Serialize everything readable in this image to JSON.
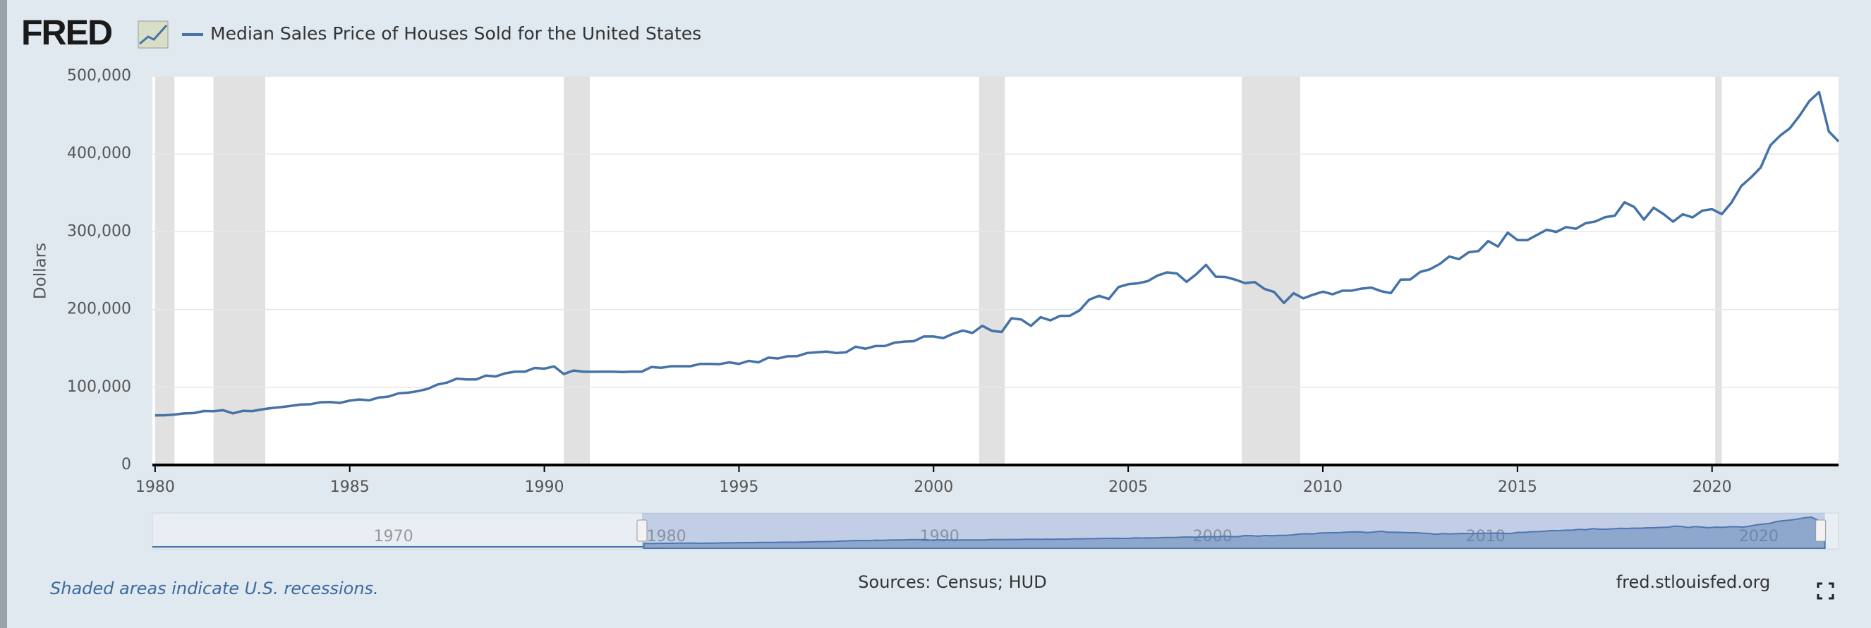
{
  "chart_data": {
    "type": "line",
    "logo": "FRED",
    "title": "Median Sales Price of Houses Sold for the United States",
    "y_label": "Dollars",
    "note": "Shaded areas indicate U.S. recessions.",
    "source": "Sources: Census; HUD",
    "site": "fred.stlouisfed.org",
    "xlim": [
      1979.93,
      2023.25
    ],
    "xticks": [
      1980,
      1985,
      1990,
      1995,
      2000,
      2005,
      2010,
      2015,
      2020
    ],
    "ylim": [
      0,
      500000
    ],
    "yticks": [
      0,
      {
        "value": 100000,
        "label": "100,000"
      },
      {
        "value": 200000,
        "label": "200,000"
      },
      {
        "value": 300000,
        "label": "300,000"
      },
      {
        "value": 400000,
        "label": "400,000"
      },
      {
        "value": 500000,
        "label": "500,000"
      }
    ],
    "grid": true,
    "recessions": [
      [
        1980.0,
        1980.5
      ],
      [
        1981.5,
        1982.83
      ],
      [
        1990.5,
        1991.17
      ],
      [
        2001.17,
        2001.83
      ],
      [
        2007.92,
        2009.42
      ],
      [
        2020.08,
        2020.25
      ]
    ],
    "recession_color": "#e1e1e1",
    "navigator_xlim": [
      1962,
      2023.75
    ],
    "navigator_xticks": [
      1970,
      1980,
      1990,
      2000,
      2010,
      2020
    ],
    "x": [
      1980,
      1980.25,
      1980.5,
      1980.75,
      1981,
      1981.25,
      1981.5,
      1981.75,
      1982,
      1982.25,
      1982.5,
      1982.75,
      1983,
      1983.25,
      1983.5,
      1983.75,
      1984,
      1984.25,
      1984.5,
      1984.75,
      1985,
      1985.25,
      1985.5,
      1985.75,
      1986,
      1986.25,
      1986.5,
      1986.75,
      1987,
      1987.25,
      1987.5,
      1987.75,
      1988,
      1988.25,
      1988.5,
      1988.75,
      1989,
      1989.25,
      1989.5,
      1989.75,
      1990,
      1990.25,
      1990.5,
      1990.75,
      1991,
      1991.25,
      1991.5,
      1991.75,
      1992,
      1992.25,
      1992.5,
      1992.75,
      1993,
      1993.25,
      1993.5,
      1993.75,
      1994,
      1994.25,
      1994.5,
      1994.75,
      1995,
      1995.25,
      1995.5,
      1995.75,
      1996,
      1996.25,
      1996.5,
      1996.75,
      1997,
      1997.25,
      1997.5,
      1997.75,
      1998,
      1998.25,
      1998.5,
      1998.75,
      1999,
      1999.25,
      1999.5,
      1999.75,
      2000,
      2000.25,
      2000.5,
      2000.75,
      2001,
      2001.25,
      2001.5,
      2001.75,
      2002,
      2002.25,
      2002.5,
      2002.75,
      2003,
      2003.25,
      2003.5,
      2003.75,
      2004,
      2004.25,
      2004.5,
      2004.75,
      2005,
      2005.25,
      2005.5,
      2005.75,
      2006,
      2006.25,
      2006.5,
      2006.75,
      2007,
      2007.25,
      2007.5,
      2007.75,
      2008,
      2008.25,
      2008.5,
      2008.75,
      2009,
      2009.25,
      2009.5,
      2009.75,
      2010,
      2010.25,
      2010.5,
      2010.75,
      2011,
      2011.25,
      2011.5,
      2011.75,
      2012,
      2012.25,
      2012.5,
      2012.75,
      2013,
      2013.25,
      2013.5,
      2013.75,
      2014,
      2014.25,
      2014.5,
      2014.75,
      2015,
      2015.25,
      2015.5,
      2015.75,
      2016,
      2016.25,
      2016.5,
      2016.75,
      2017,
      2017.25,
      2017.5,
      2017.75,
      2018,
      2018.25,
      2018.5,
      2018.75,
      2019,
      2019.25,
      2019.5,
      2019.75,
      2020,
      2020.25,
      2020.5,
      2020.75,
      2021,
      2021.25,
      2021.5,
      2021.75,
      2022,
      2022.25,
      2022.5,
      2022.75,
      2023,
      2023.25
    ],
    "series": [
      {
        "name": "Median Sales Price of Houses Sold for the United States",
        "color": "#4572a7",
        "values": [
          63700,
          64000,
          64900,
          66400,
          66800,
          69400,
          69200,
          70400,
          66400,
          69600,
          69300,
          71600,
          73300,
          74500,
          76100,
          77800,
          78200,
          80700,
          81000,
          79900,
          82800,
          84300,
          83200,
          86800,
          88000,
          92100,
          93000,
          95000,
          97900,
          103400,
          106000,
          111000,
          110000,
          110000,
          115000,
          113900,
          118000,
          120000,
          120000,
          124800,
          123900,
          126800,
          117000,
          121500,
          120000,
          119900,
          120000,
          120000,
          119500,
          120000,
          120000,
          126000,
          125000,
          127000,
          127000,
          127000,
          130000,
          130000,
          129700,
          132000,
          130000,
          133900,
          132000,
          138000,
          137000,
          139900,
          140000,
          144000,
          145000,
          145900,
          144000,
          145000,
          152200,
          149500,
          153000,
          153000,
          157400,
          158700,
          159300,
          165300,
          165300,
          163200,
          168800,
          172900,
          169800,
          179000,
          172500,
          171100,
          188700,
          187200,
          178900,
          190100,
          186000,
          191800,
          191900,
          198800,
          212700,
          217600,
          213500,
          228800,
          232500,
          233700,
          236400,
          243600,
          247700,
          246300,
          235600,
          245400,
          257400,
          242200,
          241800,
          238400,
          233900,
          235300,
          226500,
          222500,
          208400,
          220900,
          214300,
          219000,
          222900,
          219500,
          224100,
          224300,
          226900,
          228100,
          223500,
          221100,
          238400,
          238700,
          248200,
          251700,
          258400,
          268100,
          264800,
          273600,
          275200,
          288000,
          281000,
          298900,
          289200,
          289100,
          295800,
          302500,
          299800,
          306000,
          303800,
          310900,
          313100,
          318700,
          320500,
          337900,
          331800,
          315600,
          330900,
          322800,
          313000,
          322500,
          318400,
          327100,
          329000,
          322600,
          337500,
          358700,
          369800,
          382600,
          411200,
          423600,
          433100,
          449300,
          468000,
          479500,
          429000,
          416100
        ]
      }
    ]
  }
}
